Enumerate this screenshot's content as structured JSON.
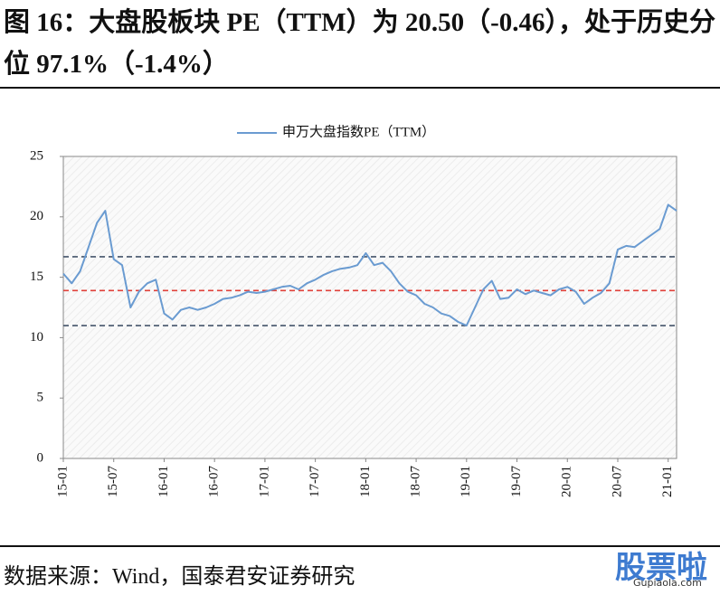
{
  "chart_data": {
    "type": "line",
    "title": "图 16：大盘股板块 PE（TTM）为 20.50（-0.46），处于历史分位 97.1%（-1.4%）",
    "source": "数据来源：Wind，国泰君安证券研究",
    "watermark": [
      "股票啦",
      "Gupiaola.com"
    ],
    "categories": [
      "15-01",
      null,
      null,
      null,
      null,
      null,
      "15-07",
      null,
      null,
      null,
      null,
      null,
      "16-01",
      null,
      null,
      null,
      null,
      null,
      "16-07",
      null,
      null,
      null,
      null,
      null,
      "17-01",
      null,
      null,
      null,
      null,
      null,
      "17-07",
      null,
      null,
      null,
      null,
      null,
      "18-01",
      null,
      null,
      null,
      null,
      null,
      "18-07",
      null,
      null,
      null,
      null,
      null,
      "19-01",
      null,
      null,
      null,
      null,
      null,
      "19-07",
      null,
      null,
      null,
      null,
      null,
      "20-01",
      null,
      null,
      null,
      null,
      null,
      "20-07",
      null,
      null,
      null,
      null,
      null,
      "21-01",
      null
    ],
    "series": [
      {
        "name": "申万大盘指数PE（TTM）",
        "color": "#6a9bd1",
        "values": [
          15.3,
          14.5,
          15.5,
          17.5,
          19.5,
          20.5,
          16.5,
          16.0,
          12.5,
          13.8,
          14.5,
          14.8,
          12.0,
          11.5,
          12.3,
          12.5,
          12.3,
          12.5,
          12.8,
          13.2,
          13.3,
          13.5,
          13.8,
          13.7,
          13.8,
          14.0,
          14.2,
          14.3,
          14.0,
          14.5,
          14.8,
          15.2,
          15.5,
          15.7,
          15.8,
          16.0,
          17.0,
          16.0,
          16.2,
          15.5,
          14.5,
          13.8,
          13.5,
          12.8,
          12.5,
          12.0,
          11.8,
          11.3,
          11.0,
          12.5,
          14.0,
          14.7,
          13.2,
          13.3,
          14.0,
          13.6,
          13.9,
          13.7,
          13.5,
          14.0,
          14.2,
          13.8,
          12.8,
          13.3,
          13.7,
          14.5,
          17.3,
          17.6,
          17.5,
          18.0,
          18.5,
          19.0,
          21.0,
          20.5
        ]
      }
    ],
    "reference_lines": [
      {
        "value": 16.7,
        "color": "#44546a"
      },
      {
        "value": 13.9,
        "color": "#e0413a"
      },
      {
        "value": 11.0,
        "color": "#44546a"
      }
    ],
    "ylim": [
      0,
      25
    ],
    "yticks": [
      0,
      5,
      10,
      15,
      20,
      25
    ]
  }
}
